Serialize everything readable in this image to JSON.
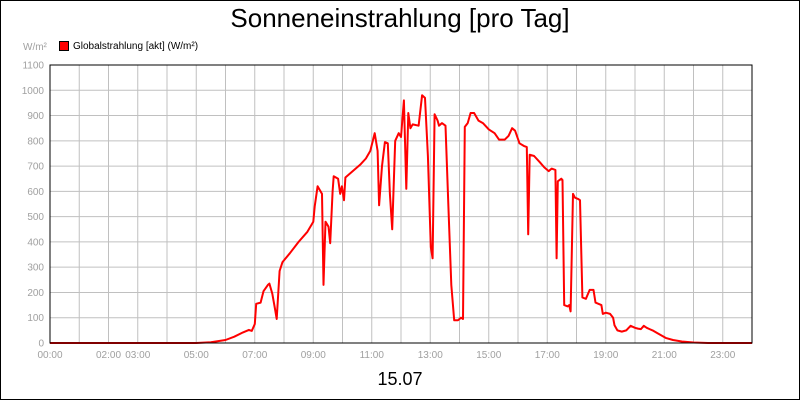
{
  "chart_data": {
    "type": "line",
    "title": "Sonneneinstrahlung [pro Tag]",
    "ylabel": "W/m²",
    "xlabel": "15.07",
    "ylim": [
      0,
      1100
    ],
    "xlim": [
      0,
      24
    ],
    "grid": true,
    "legend_position": "top-left",
    "yticks": [
      0,
      100,
      200,
      300,
      400,
      500,
      600,
      700,
      800,
      900,
      1000,
      1100
    ],
    "xtick_labels": [
      {
        "t": 0.0,
        "label": "00:00"
      },
      {
        "t": 2.0,
        "label": "02:00"
      },
      {
        "t": 3.0,
        "label": "03:00"
      },
      {
        "t": 5.0,
        "label": "05:00"
      },
      {
        "t": 7.0,
        "label": "07:00"
      },
      {
        "t": 9.0,
        "label": "09:00"
      },
      {
        "t": 11.0,
        "label": "11:00"
      },
      {
        "t": 13.0,
        "label": "13:00"
      },
      {
        "t": 15.0,
        "label": "15:00"
      },
      {
        "t": 17.0,
        "label": "17:00"
      },
      {
        "t": 19.0,
        "label": "19:00"
      },
      {
        "t": 21.0,
        "label": "21:00"
      },
      {
        "t": 23.0,
        "label": "23:00"
      }
    ],
    "series": [
      {
        "name": "Globalstrahlung [akt] (W/m²)",
        "color": "#ff0000",
        "points": [
          [
            0.0,
            0
          ],
          [
            5.0,
            0
          ],
          [
            5.5,
            3
          ],
          [
            6.0,
            12
          ],
          [
            6.3,
            25
          ],
          [
            6.6,
            42
          ],
          [
            6.8,
            52
          ],
          [
            6.9,
            48
          ],
          [
            7.0,
            75
          ],
          [
            7.05,
            155
          ],
          [
            7.2,
            160
          ],
          [
            7.3,
            205
          ],
          [
            7.45,
            230
          ],
          [
            7.5,
            235
          ],
          [
            7.6,
            195
          ],
          [
            7.7,
            130
          ],
          [
            7.75,
            95
          ],
          [
            7.85,
            285
          ],
          [
            7.95,
            320
          ],
          [
            8.2,
            355
          ],
          [
            8.5,
            400
          ],
          [
            8.8,
            440
          ],
          [
            9.0,
            480
          ],
          [
            9.05,
            540
          ],
          [
            9.15,
            620
          ],
          [
            9.3,
            590
          ],
          [
            9.35,
            230
          ],
          [
            9.42,
            480
          ],
          [
            9.52,
            460
          ],
          [
            9.58,
            395
          ],
          [
            9.66,
            600
          ],
          [
            9.7,
            660
          ],
          [
            9.85,
            650
          ],
          [
            9.92,
            590
          ],
          [
            9.98,
            620
          ],
          [
            10.05,
            565
          ],
          [
            10.1,
            655
          ],
          [
            10.3,
            675
          ],
          [
            10.6,
            705
          ],
          [
            10.8,
            730
          ],
          [
            10.95,
            760
          ],
          [
            11.1,
            830
          ],
          [
            11.2,
            760
          ],
          [
            11.25,
            545
          ],
          [
            11.35,
            700
          ],
          [
            11.45,
            795
          ],
          [
            11.55,
            790
          ],
          [
            11.62,
            590
          ],
          [
            11.7,
            450
          ],
          [
            11.8,
            800
          ],
          [
            11.92,
            830
          ],
          [
            12.0,
            815
          ],
          [
            12.1,
            960
          ],
          [
            12.18,
            610
          ],
          [
            12.25,
            910
          ],
          [
            12.32,
            850
          ],
          [
            12.4,
            865
          ],
          [
            12.6,
            860
          ],
          [
            12.72,
            980
          ],
          [
            12.82,
            970
          ],
          [
            12.92,
            740
          ],
          [
            13.02,
            380
          ],
          [
            13.08,
            335
          ],
          [
            13.15,
            905
          ],
          [
            13.25,
            880
          ],
          [
            13.3,
            860
          ],
          [
            13.4,
            870
          ],
          [
            13.52,
            860
          ],
          [
            13.62,
            540
          ],
          [
            13.72,
            230
          ],
          [
            13.82,
            90
          ],
          [
            13.95,
            90
          ],
          [
            14.05,
            100
          ],
          [
            14.12,
            95
          ],
          [
            14.18,
            855
          ],
          [
            14.28,
            870
          ],
          [
            14.38,
            910
          ],
          [
            14.5,
            910
          ],
          [
            14.65,
            880
          ],
          [
            14.8,
            870
          ],
          [
            15.0,
            845
          ],
          [
            15.2,
            830
          ],
          [
            15.35,
            805
          ],
          [
            15.55,
            805
          ],
          [
            15.68,
            820
          ],
          [
            15.8,
            850
          ],
          [
            15.9,
            840
          ],
          [
            16.05,
            790
          ],
          [
            16.2,
            780
          ],
          [
            16.3,
            775
          ],
          [
            16.35,
            430
          ],
          [
            16.4,
            745
          ],
          [
            16.55,
            740
          ],
          [
            16.75,
            715
          ],
          [
            16.9,
            695
          ],
          [
            17.05,
            680
          ],
          [
            17.15,
            690
          ],
          [
            17.28,
            685
          ],
          [
            17.32,
            335
          ],
          [
            17.36,
            640
          ],
          [
            17.48,
            650
          ],
          [
            17.52,
            645
          ],
          [
            17.58,
            150
          ],
          [
            17.7,
            145
          ],
          [
            17.75,
            150
          ],
          [
            17.8,
            125
          ],
          [
            17.88,
            590
          ],
          [
            17.95,
            575
          ],
          [
            18.05,
            570
          ],
          [
            18.12,
            565
          ],
          [
            18.2,
            180
          ],
          [
            18.32,
            175
          ],
          [
            18.45,
            210
          ],
          [
            18.58,
            210
          ],
          [
            18.65,
            160
          ],
          [
            18.75,
            155
          ],
          [
            18.85,
            150
          ],
          [
            18.9,
            115
          ],
          [
            19.0,
            120
          ],
          [
            19.15,
            115
          ],
          [
            19.25,
            100
          ],
          [
            19.3,
            70
          ],
          [
            19.4,
            50
          ],
          [
            19.55,
            45
          ],
          [
            19.7,
            50
          ],
          [
            19.85,
            68
          ],
          [
            20.0,
            60
          ],
          [
            20.1,
            57
          ],
          [
            20.2,
            55
          ],
          [
            20.3,
            68
          ],
          [
            20.4,
            60
          ],
          [
            20.5,
            55
          ],
          [
            20.6,
            50
          ],
          [
            20.75,
            40
          ],
          [
            20.9,
            30
          ],
          [
            21.05,
            20
          ],
          [
            21.3,
            12
          ],
          [
            21.6,
            6
          ],
          [
            22.0,
            2
          ],
          [
            22.5,
            0
          ],
          [
            24.0,
            0
          ]
        ]
      }
    ]
  }
}
